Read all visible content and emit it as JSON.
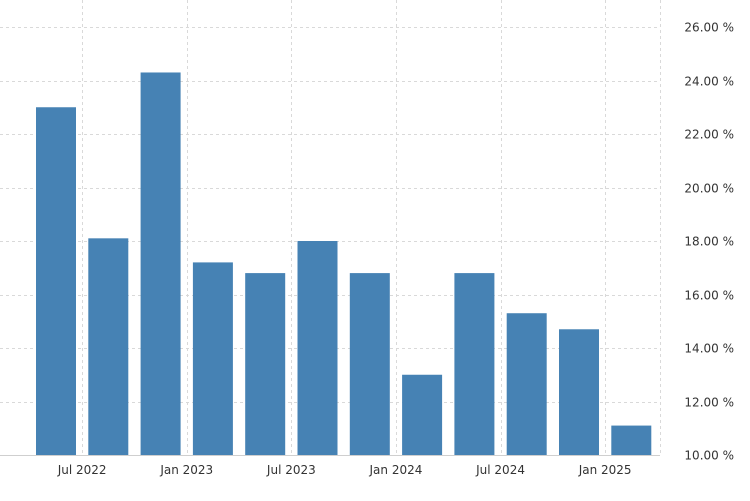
{
  "colors": {
    "bar": "#4682b4",
    "grid": "#d9d9d9",
    "text": "#333333"
  },
  "chart_data": {
    "type": "bar",
    "title": "",
    "xlabel": "",
    "ylabel": "",
    "ylim": [
      10,
      26
    ],
    "y_ticks": [
      10,
      12,
      14,
      16,
      18,
      20,
      22,
      24,
      26
    ],
    "y_tick_labels": [
      "10.00 %",
      "12.00 %",
      "14.00 %",
      "16.00 %",
      "18.00 %",
      "20.00 %",
      "22.00 %",
      "24.00 %",
      "26.00 %"
    ],
    "categories": [
      "2022-04",
      "2022-07",
      "2022-10",
      "2023-01",
      "2023-04",
      "2023-07",
      "2023-10",
      "2024-01",
      "2024-04",
      "2024-07",
      "2024-10",
      "2025-01"
    ],
    "values": [
      23.0,
      18.1,
      24.3,
      17.2,
      16.8,
      18.0,
      16.8,
      13.0,
      16.8,
      15.3,
      14.7,
      11.1
    ],
    "x_tick_labels": [
      "Jul 2022",
      "Jan 2023",
      "Jul 2023",
      "Jan 2024",
      "Jul 2024",
      "Jan 2025"
    ],
    "grid": true
  }
}
